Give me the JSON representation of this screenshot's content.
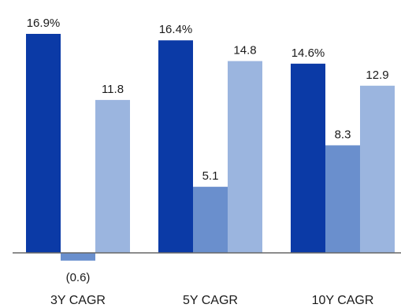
{
  "chart_data": {
    "type": "bar",
    "categories": [
      "3Y CAGR",
      "5Y CAGR",
      "10Y CAGR"
    ],
    "series": [
      {
        "color": "#0b3aa6",
        "values": [
          16.9,
          16.4,
          14.6
        ],
        "labels": [
          "16.9%",
          "16.4%",
          "14.6%"
        ]
      },
      {
        "color": "#6a8fcd",
        "values": [
          -0.6,
          5.1,
          8.3
        ],
        "labels": [
          "(0.6)",
          "5.1",
          "8.3"
        ]
      },
      {
        "color": "#9bb5df",
        "values": [
          11.8,
          14.8,
          12.9
        ],
        "labels": [
          "11.8",
          "14.8",
          "12.9"
        ]
      }
    ],
    "ylim": [
      -0.6,
      16.9
    ],
    "grid": false,
    "legend": "none",
    "axis_color": "#666666"
  }
}
